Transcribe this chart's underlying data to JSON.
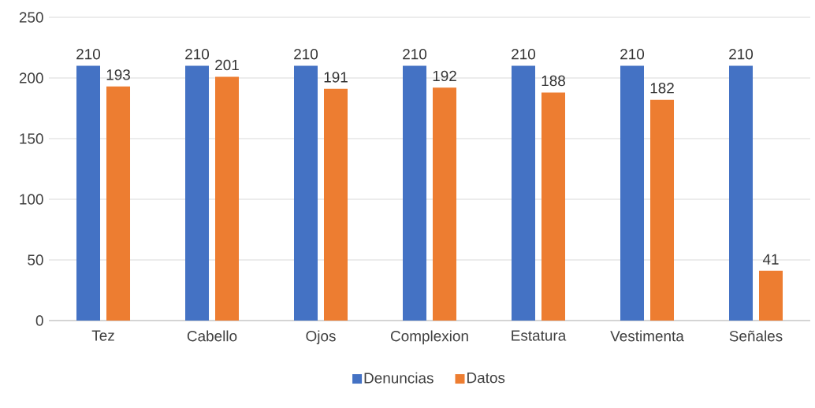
{
  "chart_data": {
    "type": "bar",
    "categories": [
      "Tez",
      "Cabello",
      "Ojos",
      "Complexion",
      "Estatura",
      "Vestimenta",
      "Señales"
    ],
    "series": [
      {
        "name": "Denuncias",
        "color": "#4472c4",
        "values": [
          210,
          210,
          210,
          210,
          210,
          210,
          210
        ]
      },
      {
        "name": "Datos",
        "color": "#ed7d31",
        "values": [
          193,
          201,
          191,
          192,
          188,
          182,
          41
        ]
      }
    ],
    "ylim": [
      0,
      250
    ],
    "yticks": [
      0,
      50,
      100,
      150,
      200,
      250
    ],
    "grid": "y",
    "legend": "bottom",
    "data_labels": true
  }
}
